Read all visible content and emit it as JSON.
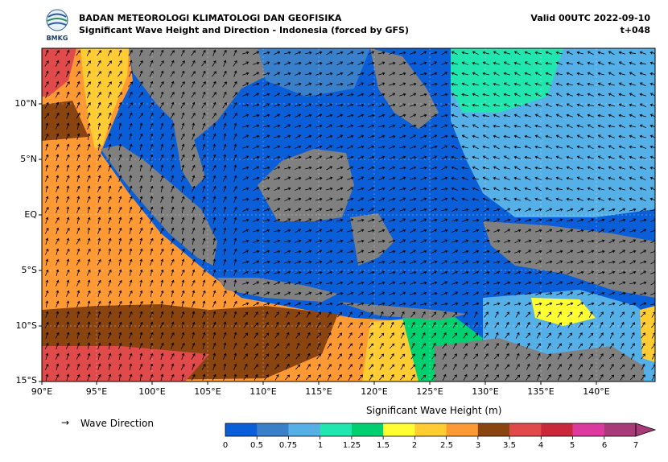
{
  "header": {
    "logo_text": "BMKG",
    "title_line1": "BADAN METEOROLOGI KLIMATOLOGI DAN GEOFISIKA",
    "title_line2": "Significant Wave Height and Direction - Indonesia (forced by GFS)",
    "valid_line1": "Valid 00UTC 2022-09-10",
    "valid_line2": "t+048"
  },
  "map": {
    "lat_labels": [
      "10°N",
      "5°N",
      "EQ",
      "5°S",
      "10°S",
      "15°S"
    ],
    "lon_labels": [
      "90°E",
      "95°E",
      "100°E",
      "105°E",
      "110°E",
      "115°E",
      "120°E",
      "125°E",
      "130°E",
      "135°E",
      "140°E"
    ],
    "land_color": "#808080",
    "arrow_color": "#000000",
    "grid": "dashed"
  },
  "legend": {
    "arrow_symbol": "→",
    "arrow_label": "Wave Direction",
    "colorbar_title": "Significant Wave Height (m)",
    "ticks": [
      "0",
      "0.5",
      "0.75",
      "1",
      "1.25",
      "1.5",
      "2",
      "2.5",
      "3",
      "3.5",
      "4",
      "5",
      "6",
      "7"
    ],
    "colors": [
      "#0a5fd8",
      "#3a7fc9",
      "#55b0e8",
      "#22e6b0",
      "#00d070",
      "#ffff33",
      "#ffcc33",
      "#ff9933",
      "#8a4410",
      "#e04a4a",
      "#c8283a",
      "#dd3aa0",
      "#a93a7a"
    ]
  }
}
